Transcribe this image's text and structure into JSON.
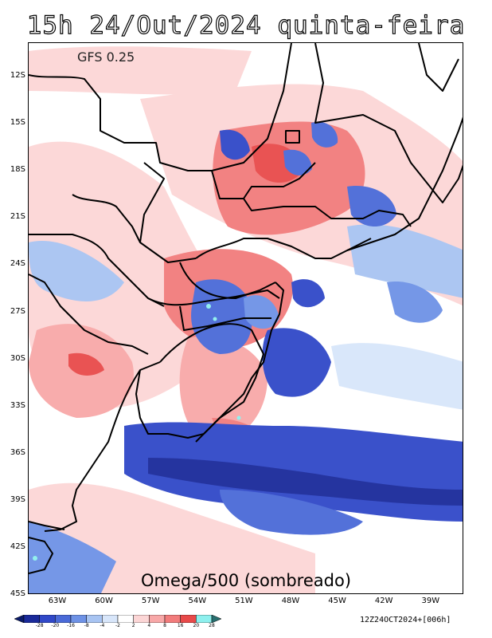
{
  "title": "15h 24/Out/2024 quinta-feira",
  "model_label": "GFS 0.25",
  "field_label": "Omega/500 (sombreado)",
  "timestamp": "12Z24OCT2024+[006h]",
  "lat_labels": [
    "12S",
    "15S",
    "18S",
    "21S",
    "24S",
    "27S",
    "30S",
    "33S",
    "36S",
    "39S",
    "42S",
    "45S"
  ],
  "lon_labels": [
    "63W",
    "60W",
    "57W",
    "54W",
    "51W",
    "48W",
    "45W",
    "42W",
    "39W"
  ],
  "colorbar": {
    "labels": [
      "-28",
      "-20",
      "-16",
      "-8",
      "-4",
      "-2",
      "2",
      "4",
      "8",
      "16",
      "20",
      "28"
    ],
    "colors": [
      "#1a2a9a",
      "#3048c8",
      "#4a6ad8",
      "#6e92e6",
      "#a8c4f2",
      "#d8e6fa",
      "#ffffff",
      "#fcd6d6",
      "#f8a8a8",
      "#f27c7c",
      "#e84a4a",
      "#8ef0ee"
    ]
  },
  "map": {
    "bounds": {
      "lon_min": -65,
      "lon_max": -37,
      "lat_min": -45,
      "lat_max": -10
    }
  }
}
